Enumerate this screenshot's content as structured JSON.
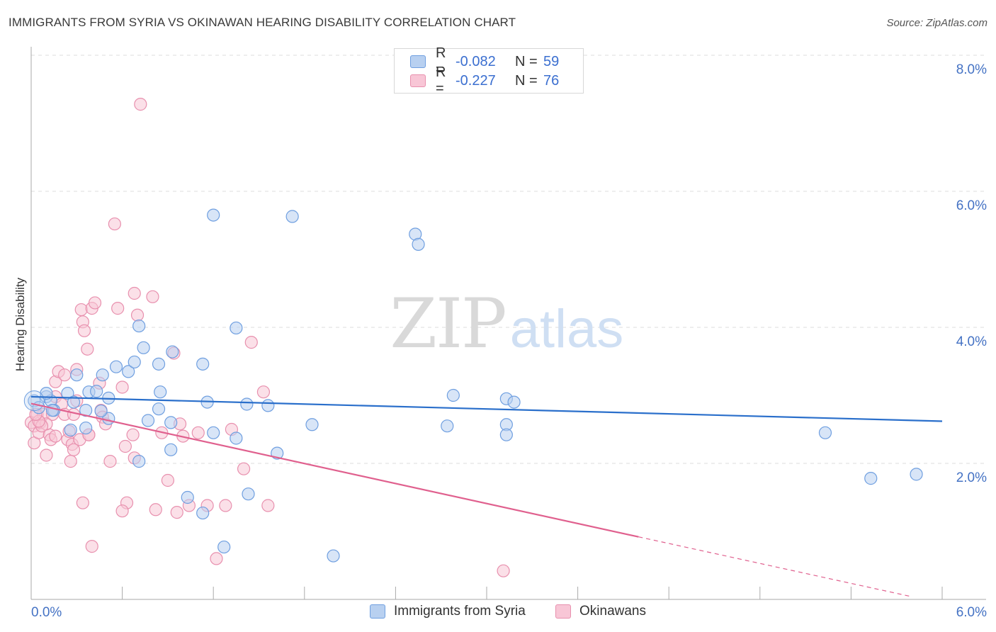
{
  "header": {
    "title": "IMMIGRANTS FROM SYRIA VS OKINAWAN HEARING DISABILITY CORRELATION CHART",
    "source": "Source: ZipAtlas.com"
  },
  "legend_top": [
    {
      "r_label": "R =",
      "r_value": "-0.082",
      "n_label": "N =",
      "n_value": "59"
    },
    {
      "r_label": "R =",
      "r_value": "-0.227",
      "n_label": "N =",
      "n_value": "76"
    }
  ],
  "legend_bottom": [
    {
      "label": "Immigrants from Syria"
    },
    {
      "label": "Okinawans"
    }
  ],
  "watermark": {
    "zip": "ZIP",
    "atlas": "atlas"
  },
  "colors": {
    "series1_fill": "#b8d0f0",
    "series1_stroke": "#6f9fe0",
    "series1_line": "#2a6fcb",
    "series2_fill": "#f8c6d6",
    "series2_stroke": "#e890ae",
    "series2_line": "#e0608e",
    "tick_text": "#4472c4",
    "grid": "#dddddd"
  },
  "chart_data": {
    "type": "scatter",
    "title": "IMMIGRANTS FROM SYRIA VS OKINAWAN HEARING DISABILITY CORRELATION CHART",
    "ylabel": "Hearing Disability",
    "xlabel": "",
    "xlim": [
      0,
      6.0
    ],
    "ylim": [
      0,
      8.0
    ],
    "x_tick_labels": [
      "0.0%",
      "6.0%"
    ],
    "y_ticks": [
      2.0,
      4.0,
      6.0,
      8.0
    ],
    "y_tick_labels": [
      "2.0%",
      "4.0%",
      "6.0%",
      "8.0%"
    ],
    "grid": true,
    "legend_position": "top-center",
    "series": [
      {
        "name": "Immigrants from Syria",
        "r": -0.082,
        "n": 59,
        "trend": {
          "x": [
            0.0,
            6.0
          ],
          "y": [
            2.98,
            2.62
          ]
        },
        "points": [
          [
            0.02,
            2.92
          ],
          [
            0.05,
            2.82
          ],
          [
            0.1,
            2.98
          ],
          [
            0.13,
            2.92
          ],
          [
            0.1,
            3.03
          ],
          [
            0.15,
            2.78
          ],
          [
            0.24,
            3.03
          ],
          [
            0.14,
            2.78
          ],
          [
            0.28,
            2.9
          ],
          [
            0.38,
            3.05
          ],
          [
            0.43,
            3.06
          ],
          [
            0.3,
            3.3
          ],
          [
            0.47,
            3.3
          ],
          [
            0.36,
            2.78
          ],
          [
            0.51,
            2.96
          ],
          [
            0.56,
            3.42
          ],
          [
            0.64,
            3.35
          ],
          [
            0.71,
            4.02
          ],
          [
            0.74,
            3.7
          ],
          [
            0.93,
            3.64
          ],
          [
            0.77,
            2.63
          ],
          [
            0.85,
            3.05
          ],
          [
            1.13,
            3.46
          ],
          [
            1.16,
            2.9
          ],
          [
            1.42,
            2.87
          ],
          [
            1.2,
            5.65
          ],
          [
            1.72,
            5.63
          ],
          [
            1.56,
            2.85
          ],
          [
            1.35,
            3.99
          ],
          [
            0.68,
            3.49
          ],
          [
            0.51,
            2.66
          ],
          [
            0.84,
            3.46
          ],
          [
            0.36,
            2.52
          ],
          [
            0.46,
            2.77
          ],
          [
            0.26,
            2.49
          ],
          [
            0.92,
            2.2
          ],
          [
            0.84,
            2.8
          ],
          [
            0.92,
            2.6
          ],
          [
            0.71,
            2.03
          ],
          [
            1.03,
            1.5
          ],
          [
            1.2,
            2.45
          ],
          [
            1.35,
            2.37
          ],
          [
            1.43,
            1.55
          ],
          [
            1.85,
            2.57
          ],
          [
            1.62,
            2.15
          ],
          [
            2.78,
            3.0
          ],
          [
            3.13,
            2.95
          ],
          [
            3.18,
            2.9
          ],
          [
            3.13,
            2.57
          ],
          [
            1.13,
            1.27
          ],
          [
            1.27,
            0.77
          ],
          [
            1.99,
            0.64
          ],
          [
            2.53,
            5.37
          ],
          [
            2.55,
            5.22
          ],
          [
            2.74,
            2.55
          ],
          [
            3.13,
            2.42
          ],
          [
            5.23,
            2.45
          ],
          [
            5.53,
            1.78
          ],
          [
            5.83,
            1.84
          ]
        ]
      },
      {
        "name": "Okinawans",
        "r": -0.227,
        "n": 76,
        "trend": {
          "x": [
            0.0,
            4.0
          ],
          "y": [
            2.88,
            0.92
          ]
        },
        "trend_dashed": {
          "x": [
            4.0,
            5.8
          ],
          "y": [
            0.92,
            0.04
          ]
        },
        "points": [
          [
            0.0,
            2.6
          ],
          [
            0.02,
            2.55
          ],
          [
            0.02,
            2.3
          ],
          [
            0.04,
            2.72
          ],
          [
            0.05,
            2.45
          ],
          [
            0.06,
            2.6
          ],
          [
            0.08,
            2.72
          ],
          [
            0.1,
            2.12
          ],
          [
            0.12,
            2.42
          ],
          [
            0.13,
            2.35
          ],
          [
            0.14,
            2.72
          ],
          [
            0.16,
            2.98
          ],
          [
            0.16,
            3.2
          ],
          [
            0.18,
            3.35
          ],
          [
            0.2,
            2.87
          ],
          [
            0.22,
            3.3
          ],
          [
            0.22,
            2.72
          ],
          [
            0.24,
            2.35
          ],
          [
            0.25,
            2.47
          ],
          [
            0.26,
            2.03
          ],
          [
            0.27,
            2.28
          ],
          [
            0.28,
            2.72
          ],
          [
            0.28,
            2.2
          ],
          [
            0.3,
            2.92
          ],
          [
            0.3,
            3.38
          ],
          [
            0.32,
            2.35
          ],
          [
            0.33,
            4.26
          ],
          [
            0.34,
            4.08
          ],
          [
            0.35,
            3.95
          ],
          [
            0.37,
            3.68
          ],
          [
            0.38,
            2.42
          ],
          [
            0.38,
            2.42
          ],
          [
            0.4,
            4.28
          ],
          [
            0.42,
            4.36
          ],
          [
            0.45,
            3.18
          ],
          [
            0.46,
            2.78
          ],
          [
            0.47,
            2.68
          ],
          [
            0.49,
            2.58
          ],
          [
            0.52,
            2.03
          ],
          [
            0.55,
            5.52
          ],
          [
            0.57,
            4.28
          ],
          [
            0.6,
            3.12
          ],
          [
            0.62,
            2.25
          ],
          [
            0.63,
            1.42
          ],
          [
            0.67,
            2.42
          ],
          [
            0.68,
            2.08
          ],
          [
            0.68,
            4.5
          ],
          [
            0.7,
            4.18
          ],
          [
            0.72,
            7.28
          ],
          [
            0.8,
            4.45
          ],
          [
            0.82,
            1.32
          ],
          [
            0.86,
            2.45
          ],
          [
            0.9,
            1.75
          ],
          [
            0.94,
            3.62
          ],
          [
            0.96,
            1.28
          ],
          [
            0.98,
            2.58
          ],
          [
            1.0,
            2.4
          ],
          [
            1.04,
            1.38
          ],
          [
            1.1,
            2.45
          ],
          [
            1.16,
            1.38
          ],
          [
            1.22,
            0.6
          ],
          [
            1.28,
            1.38
          ],
          [
            1.32,
            2.5
          ],
          [
            1.4,
            1.92
          ],
          [
            1.45,
            3.78
          ],
          [
            1.53,
            3.05
          ],
          [
            1.56,
            1.38
          ],
          [
            0.34,
            1.42
          ],
          [
            0.4,
            0.78
          ],
          [
            0.6,
            1.3
          ],
          [
            0.16,
            2.4
          ],
          [
            0.1,
            2.58
          ],
          [
            0.07,
            2.55
          ],
          [
            0.05,
            2.62
          ],
          [
            0.03,
            2.72
          ],
          [
            3.11,
            0.42
          ]
        ]
      }
    ]
  }
}
